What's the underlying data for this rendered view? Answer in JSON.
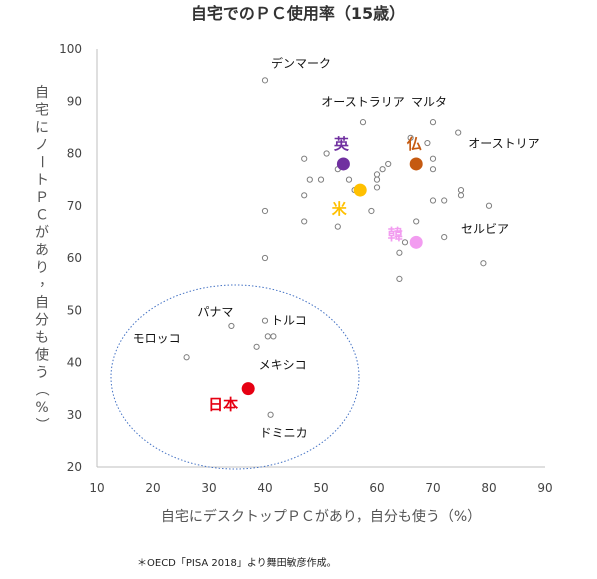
{
  "chart_data": {
    "type": "scatter",
    "title": "自宅でのＰＣ使用率（15歳）",
    "xlabel": "自宅にデスクトップＰＣがあり，自分も使う（%）",
    "ylabel": "自宅にノートＰＣがあり，自分も使う（%）",
    "xlim": [
      10,
      90
    ],
    "ylim": [
      20,
      100
    ],
    "xticks": [
      "10",
      "20",
      "30",
      "40",
      "50",
      "60",
      "70",
      "80",
      "90"
    ],
    "yticks": [
      "20",
      "30",
      "40",
      "50",
      "60",
      "70",
      "80",
      "90",
      "100"
    ],
    "grid": false,
    "points": [
      [
        40,
        94
      ],
      [
        57.5,
        86
      ],
      [
        70,
        86
      ],
      [
        66,
        83
      ],
      [
        69,
        82
      ],
      [
        74.5,
        84
      ],
      [
        75,
        73
      ],
      [
        75,
        72
      ],
      [
        80,
        70
      ],
      [
        62,
        78
      ],
      [
        61,
        77
      ],
      [
        60,
        76
      ],
      [
        60,
        75
      ],
      [
        60,
        73.5
      ],
      [
        59,
        69
      ],
      [
        56,
        73
      ],
      [
        55,
        75
      ],
      [
        51,
        80
      ],
      [
        47,
        79
      ],
      [
        48,
        75
      ],
      [
        50,
        75
      ],
      [
        47,
        72
      ],
      [
        53,
        66
      ],
      [
        47,
        67
      ],
      [
        40,
        69
      ],
      [
        40,
        60
      ],
      [
        67,
        67
      ],
      [
        70,
        71
      ],
      [
        72,
        71
      ],
      [
        70,
        77
      ],
      [
        70,
        79
      ],
      [
        65,
        63
      ],
      [
        72,
        64
      ],
      [
        64,
        61
      ],
      [
        79,
        59
      ],
      [
        64,
        56
      ],
      [
        53,
        77
      ],
      [
        40.5,
        45
      ],
      [
        41.5,
        45
      ],
      [
        34,
        47
      ],
      [
        40,
        48
      ],
      [
        38.5,
        43
      ],
      [
        26,
        41
      ],
      [
        41,
        30
      ]
    ],
    "highlights": [
      {
        "label": "英",
        "x": 54,
        "y": 78,
        "color": "#7030A0"
      },
      {
        "label": "仏",
        "x": 67,
        "y": 78,
        "color": "#C55A11"
      },
      {
        "label": "米",
        "x": 57,
        "y": 73,
        "color": "#FFC000"
      },
      {
        "label": "韓",
        "x": 67,
        "y": 63,
        "color": "#F29CF0"
      },
      {
        "label": "日本",
        "x": 37,
        "y": 35,
        "color": "#E60012"
      }
    ],
    "annotations": [
      {
        "text": "デンマーク",
        "x": 40,
        "y": 94
      },
      {
        "text": "オーストラリア",
        "x": 57.5,
        "y": 86
      },
      {
        "text": "マルタ",
        "x": 70,
        "y": 86
      },
      {
        "text": "オーストリア",
        "x": 74.5,
        "y": 84
      },
      {
        "text": "セルビア",
        "x": 80,
        "y": 70
      },
      {
        "text": "パナマ",
        "x": 34,
        "y": 47
      },
      {
        "text": "トルコ",
        "x": 40,
        "y": 48
      },
      {
        "text": "モロッコ",
        "x": 26,
        "y": 41
      },
      {
        "text": "メキシコ",
        "x": 38.5,
        "y": 43
      },
      {
        "text": "ドミニカ",
        "x": 41,
        "y": 30
      }
    ]
  },
  "footnote": "＊OECD「PISA 2018」より舞田敏彦作成。"
}
